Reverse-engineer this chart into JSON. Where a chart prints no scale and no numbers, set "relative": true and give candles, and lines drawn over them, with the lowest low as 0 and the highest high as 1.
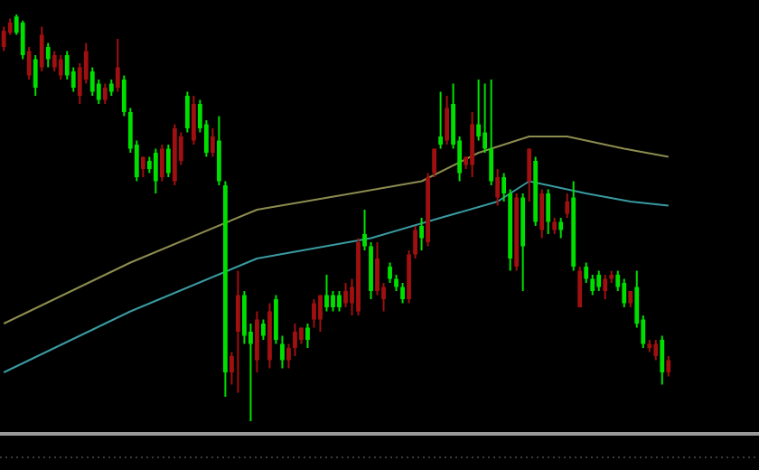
{
  "chart_data": {
    "type": "candlestick",
    "relative": true,
    "categories": [
      null,
      null,
      null,
      null,
      null,
      null,
      null,
      null,
      null,
      null,
      null,
      null,
      null,
      null,
      null,
      null,
      null,
      null,
      null,
      null,
      null,
      null,
      null,
      null,
      null,
      null,
      null,
      null,
      null,
      null,
      null,
      null,
      null,
      null,
      null,
      null,
      null,
      null,
      null,
      null,
      null,
      null,
      null,
      null,
      null,
      null,
      null,
      null,
      null,
      null,
      null,
      null,
      null,
      null,
      null,
      null,
      null,
      null,
      null,
      null,
      null,
      null,
      null,
      null,
      null,
      null,
      null,
      null,
      null,
      null,
      null,
      null,
      null,
      null,
      null,
      null,
      null,
      null,
      null,
      null,
      null,
      null,
      null,
      null,
      null,
      null,
      null,
      null,
      null,
      null,
      null,
      null,
      null,
      null,
      null,
      null,
      null,
      null,
      null,
      null,
      null,
      null,
      null,
      null,
      null,
      null
    ],
    "ohlc": [
      [
        0.92,
        0.97,
        0.91,
        0.96
      ],
      [
        0.955,
        0.99,
        0.95,
        0.98
      ],
      [
        0.995,
        1,
        0.95,
        0.955
      ],
      [
        0.98,
        0.985,
        0.89,
        0.9
      ],
      [
        0.85,
        0.92,
        0.84,
        0.91
      ],
      [
        0.89,
        0.9,
        0.8,
        0.82
      ],
      [
        0.87,
        0.97,
        0.86,
        0.95
      ],
      [
        0.92,
        0.93,
        0.87,
        0.89
      ],
      [
        0.87,
        0.91,
        0.86,
        0.9
      ],
      [
        0.85,
        0.9,
        0.84,
        0.89
      ],
      [
        0.9,
        0.91,
        0.84,
        0.85
      ],
      [
        0.86,
        0.87,
        0.81,
        0.82
      ],
      [
        0.8,
        0.88,
        0.78,
        0.87
      ],
      [
        0.84,
        0.93,
        0.83,
        0.91
      ],
      [
        0.86,
        0.87,
        0.8,
        0.81
      ],
      [
        0.83,
        0.84,
        0.78,
        0.79
      ],
      [
        0.79,
        0.83,
        0.78,
        0.82
      ],
      [
        0.83,
        0.84,
        0.8,
        0.81
      ],
      [
        0.82,
        0.94,
        0.81,
        0.87
      ],
      [
        0.84,
        0.85,
        0.75,
        0.76
      ],
      [
        0.76,
        0.77,
        0.66,
        0.67
      ],
      [
        0.68,
        0.69,
        0.59,
        0.6
      ],
      [
        0.62,
        0.65,
        0.6,
        0.65
      ],
      [
        0.64,
        0.65,
        0.61,
        0.62
      ],
      [
        0.66,
        0.67,
        0.56,
        0.59
      ],
      [
        0.6,
        0.68,
        0.59,
        0.67
      ],
      [
        0.67,
        0.68,
        0.6,
        0.61
      ],
      [
        0.59,
        0.73,
        0.58,
        0.72
      ],
      [
        0.64,
        0.71,
        0.63,
        0.7
      ],
      [
        0.8,
        0.81,
        0.71,
        0.72
      ],
      [
        0.69,
        0.8,
        0.68,
        0.78
      ],
      [
        0.78,
        0.79,
        0.71,
        0.72
      ],
      [
        0.73,
        0.74,
        0.65,
        0.66
      ],
      [
        0.66,
        0.72,
        0.65,
        0.7
      ],
      [
        0.69,
        0.75,
        0.58,
        0.59
      ],
      [
        0.58,
        0.59,
        0.06,
        0.12
      ],
      [
        0.12,
        0.17,
        0.09,
        0.16
      ],
      [
        0.22,
        0.37,
        0.07,
        0.31
      ],
      [
        0.31,
        0.32,
        0.19,
        0.21
      ],
      [
        0.22,
        0.24,
        0,
        0.19
      ],
      [
        0.15,
        0.27,
        0.12,
        0.25
      ],
      [
        0.24,
        0.25,
        0.2,
        0.21
      ],
      [
        0.15,
        0.29,
        0.13,
        0.27
      ],
      [
        0.3,
        0.31,
        0.19,
        0.2
      ],
      [
        0.19,
        0.21,
        0.13,
        0.15
      ],
      [
        0.15,
        0.19,
        0.13,
        0.18
      ],
      [
        0.18,
        0.24,
        0.16,
        0.22
      ],
      [
        0.2,
        0.23,
        0.19,
        0.23
      ],
      [
        0.23,
        0.24,
        0.18,
        0.2
      ],
      [
        0.25,
        0.3,
        0.23,
        0.29
      ],
      [
        0.25,
        0.31,
        0.22,
        0.31
      ],
      [
        0.31,
        0.36,
        0.27,
        0.28
      ],
      [
        0.31,
        0.32,
        0.27,
        0.28
      ],
      [
        0.31,
        0.32,
        0.27,
        0.28
      ],
      [
        0.29,
        0.34,
        0.28,
        0.32
      ],
      [
        0.29,
        0.35,
        0.26,
        0.33
      ],
      [
        0.27,
        0.45,
        0.26,
        0.44
      ],
      [
        0.46,
        0.52,
        0.42,
        0.43
      ],
      [
        0.43,
        0.44,
        0.3,
        0.32
      ],
      [
        0.32,
        0.44,
        0.31,
        0.4
      ],
      [
        0.3,
        0.34,
        0.27,
        0.33
      ],
      [
        0.38,
        0.39,
        0.34,
        0.35
      ],
      [
        0.35,
        0.36,
        0.32,
        0.33
      ],
      [
        0.33,
        0.34,
        0.29,
        0.3
      ],
      [
        0.3,
        0.42,
        0.29,
        0.41
      ],
      [
        0.41,
        0.48,
        0.4,
        0.47
      ],
      [
        0.48,
        0.5,
        0.42,
        0.45
      ],
      [
        0.44,
        0.61,
        0.43,
        0.6
      ],
      [
        0.61,
        0.67,
        0.6,
        0.67
      ],
      [
        0.7,
        0.81,
        0.67,
        0.68
      ],
      [
        0.69,
        0.8,
        0.68,
        0.77
      ],
      [
        0.78,
        0.83,
        0.67,
        0.68
      ],
      [
        0.69,
        0.7,
        0.59,
        0.61
      ],
      [
        0.63,
        0.65,
        0.62,
        0.65
      ],
      [
        0.63,
        0.76,
        0.6,
        0.73
      ],
      [
        0.73,
        0.84,
        0.69,
        0.7
      ],
      [
        0.71,
        0.83,
        0.66,
        0.67
      ],
      [
        0.67,
        0.84,
        0.58,
        0.59
      ],
      [
        0.55,
        0.62,
        0.53,
        0.6
      ],
      [
        0.6,
        0.61,
        0.54,
        0.56
      ],
      [
        0.56,
        0.57,
        0.37,
        0.4
      ],
      [
        0.38,
        0.56,
        0.37,
        0.55
      ],
      [
        0.55,
        0.56,
        0.32,
        0.43
      ],
      [
        0.59,
        0.67,
        0.54,
        0.67
      ],
      [
        0.64,
        0.65,
        0.48,
        0.49
      ],
      [
        0.47,
        0.57,
        0.45,
        0.56
      ],
      [
        0.56,
        0.57,
        0.46,
        0.49
      ],
      [
        0.47,
        0.5,
        0.46,
        0.49
      ],
      [
        0.49,
        0.5,
        0.45,
        0.47
      ],
      [
        0.51,
        0.56,
        0.5,
        0.54
      ],
      [
        0.55,
        0.59,
        0.37,
        0.38
      ],
      [
        0.28,
        0.38,
        0.28,
        0.37
      ],
      [
        0.38,
        0.39,
        0.34,
        0.35
      ],
      [
        0.35,
        0.36,
        0.31,
        0.32
      ],
      [
        0.36,
        0.37,
        0.32,
        0.33
      ],
      [
        0.32,
        0.36,
        0.3,
        0.35
      ],
      [
        0.35,
        0.37,
        0.34,
        0.36
      ],
      [
        0.36,
        0.37,
        0.32,
        0.33
      ],
      [
        0.34,
        0.35,
        0.28,
        0.29
      ],
      [
        0.29,
        0.32,
        0.28,
        0.32
      ],
      [
        0.33,
        0.37,
        0.23,
        0.24
      ],
      [
        0.25,
        0.26,
        0.18,
        0.19
      ],
      [
        0.18,
        0.2,
        0.17,
        0.19
      ],
      [
        0.16,
        0.2,
        0.15,
        0.19
      ],
      [
        0.2,
        0.21,
        0.09,
        0.12
      ],
      [
        0.12,
        0.16,
        0.11,
        0.15
      ]
    ],
    "colors": [
      "#a01010",
      "#a01010",
      "#00e000",
      "#00e000",
      "#a01010",
      "#00e000",
      "#a01010",
      "#00e000",
      "#a01010",
      "#a01010",
      "#00e000",
      "#00e000",
      "#a01010",
      "#a01010",
      "#00e000",
      "#00e000",
      "#a01010",
      "#00e000",
      "#a01010",
      "#00e000",
      "#00e000",
      "#00e000",
      "#a01010",
      "#00e000",
      "#00e000",
      "#a01010",
      "#00e000",
      "#a01010",
      "#a01010",
      "#00e000",
      "#a01010",
      "#00e000",
      "#00e000",
      "#a01010",
      "#00e000",
      "#00e000",
      "#a01010",
      "#a01010",
      "#00e000",
      "#00e000",
      "#a01010",
      "#00e000",
      "#a01010",
      "#00e000",
      "#00e000",
      "#a01010",
      "#a01010",
      "#a01010",
      "#00e000",
      "#a01010",
      "#a01010",
      "#00e000",
      "#00e000",
      "#00e000",
      "#a01010",
      "#a01010",
      "#a01010",
      "#00e000",
      "#00e000",
      "#a01010",
      "#a01010",
      "#00e000",
      "#00e000",
      "#00e000",
      "#a01010",
      "#a01010",
      "#00e000",
      "#a01010",
      "#a01010",
      "#00e000",
      "#a01010",
      "#00e000",
      "#00e000",
      "#a01010",
      "#a01010",
      "#00e000",
      "#00e000",
      "#00e000",
      "#a01010",
      "#00e000",
      "#00e000",
      "#a01010",
      "#00e000",
      "#a01010",
      "#00e000",
      "#a01010",
      "#00e000",
      "#a01010",
      "#00e000",
      "#a01010",
      "#00e000",
      "#a01010",
      "#00e000",
      "#00e000",
      "#00e000",
      "#a01010",
      "#a01010",
      "#00e000",
      "#00e000",
      "#a01010",
      "#00e000",
      "#00e000",
      "#a01010",
      "#a01010",
      "#00e000",
      "#a01010"
    ],
    "series": [
      {
        "type": "line",
        "color": "#8c8c50",
        "values": [
          0.24,
          null,
          null,
          null,
          null,
          null,
          null,
          null,
          null,
          null,
          null,
          null,
          null,
          null,
          null,
          null,
          null,
          null,
          null,
          null,
          0.39,
          null,
          null,
          null,
          null,
          null,
          null,
          null,
          null,
          null,
          null,
          null,
          null,
          null,
          null,
          null,
          null,
          null,
          null,
          null,
          0.52,
          null,
          null,
          null,
          null,
          null,
          null,
          null,
          null,
          null,
          null,
          null,
          null,
          null,
          null,
          0.56,
          null,
          null,
          null,
          null,
          null,
          null,
          null,
          null,
          null,
          null,
          0.59,
          null,
          null,
          null,
          null,
          null,
          null,
          null,
          null,
          0.66,
          null,
          null,
          null,
          null,
          null,
          null,
          null,
          0.7,
          null,
          null,
          null,
          null,
          null,
          0.7,
          null,
          null,
          null,
          null,
          null,
          null,
          null,
          null,
          0.67,
          null,
          null,
          null,
          null,
          null,
          null,
          0.65
        ]
      },
      {
        "type": "line",
        "color": "#3a9aa0",
        "values": [
          0.12,
          null,
          null,
          null,
          null,
          null,
          null,
          null,
          null,
          null,
          null,
          null,
          null,
          null,
          null,
          null,
          null,
          null,
          null,
          null,
          0.27,
          null,
          null,
          null,
          null,
          null,
          null,
          null,
          null,
          null,
          null,
          null,
          null,
          null,
          null,
          null,
          null,
          null,
          null,
          null,
          0.4,
          null,
          null,
          null,
          null,
          null,
          null,
          null,
          null,
          null,
          null,
          null,
          null,
          null,
          null,
          null,
          null,
          null,
          0.45,
          null,
          null,
          null,
          null,
          null,
          null,
          null,
          null,
          null,
          null,
          0.5,
          null,
          null,
          null,
          null,
          null,
          null,
          null,
          null,
          0.54,
          null,
          null,
          null,
          null,
          0.59,
          null,
          null,
          null,
          null,
          null,
          null,
          null,
          null,
          0.56,
          null,
          null,
          null,
          null,
          null,
          null,
          0.54,
          null,
          null,
          null,
          null,
          null,
          0.53
        ]
      }
    ]
  }
}
